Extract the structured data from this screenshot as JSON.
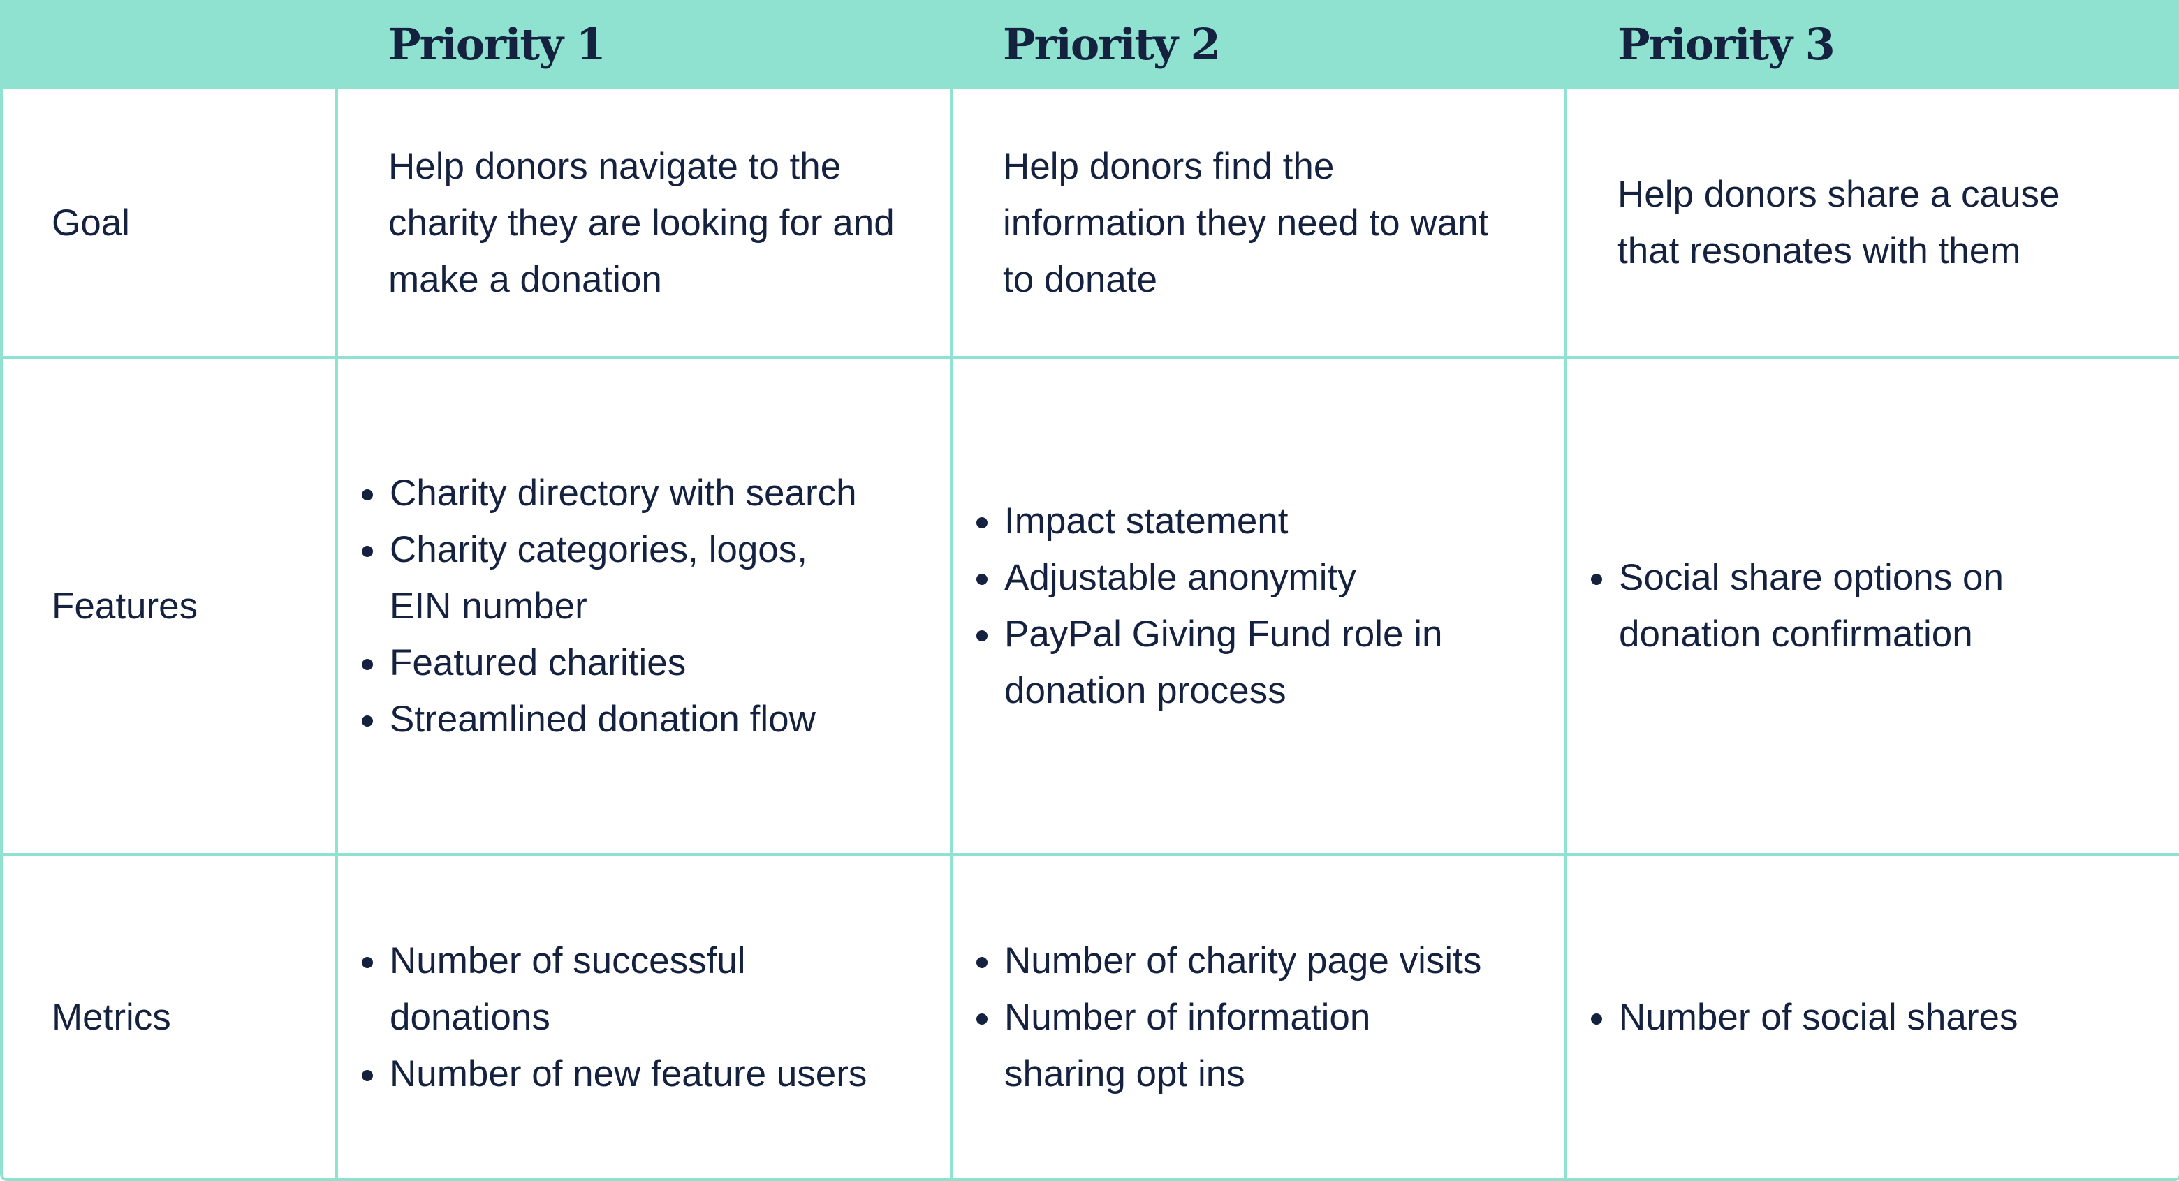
{
  "header": {
    "col1": "Priority 1",
    "col2": "Priority 2",
    "col3": "Priority 3"
  },
  "rows": {
    "goal": {
      "label": "Goal",
      "p1": "Help donors navigate to the charity they are looking for and make a donation",
      "p2": "Help donors find the information they need to want to donate",
      "p3": "Help donors share a cause that resonates with them"
    },
    "features": {
      "label": "Features",
      "p1": [
        "Charity directory with search",
        "Charity categories, logos, EIN number",
        "Featured charities",
        "Streamlined donation flow"
      ],
      "p2": [
        "Impact statement",
        "Adjustable anonymity",
        "PayPal Giving Fund role in donation process"
      ],
      "p3": [
        "Social share options on donation confirmation"
      ]
    },
    "metrics": {
      "label": "Metrics",
      "p1": [
        "Number of successful donations",
        "Number of new feature users"
      ],
      "p2": [
        "Number of charity page visits",
        "Number of information sharing opt ins"
      ],
      "p3": [
        "Number of social shares"
      ]
    }
  },
  "colors": {
    "header_bg": "#8ee2cf",
    "border": "#8ee2cf",
    "text": "#15223f"
  }
}
